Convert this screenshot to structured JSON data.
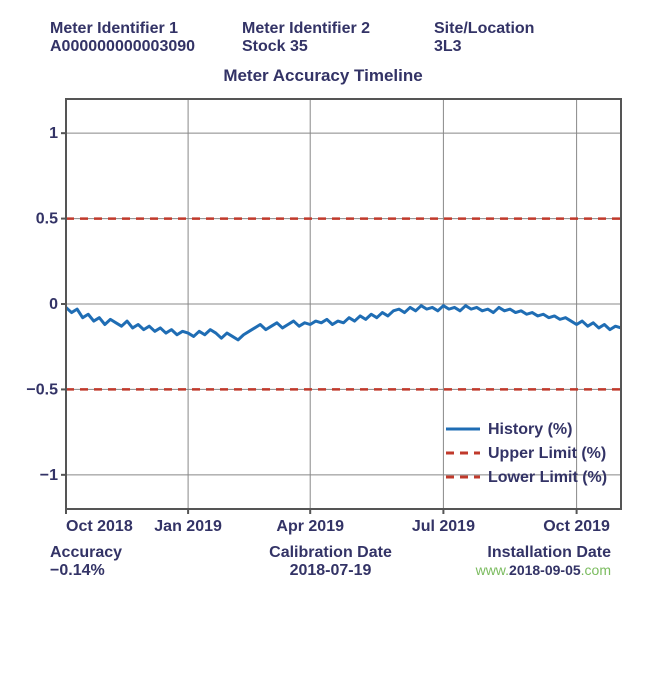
{
  "header": {
    "col1_label": "Meter Identifier 1",
    "col1_value": "A000000000003090",
    "col2_label": "Meter Identifier 2",
    "col2_value": "Stock 35",
    "col3_label": "Site/Location",
    "col3_value": "3L3"
  },
  "chart": {
    "title": "Meter Accuracy Timeline",
    "type": "line",
    "ylim": [
      -1.2,
      1.2
    ],
    "ytick_values": [
      -1,
      -0.5,
      0,
      0.5,
      1
    ],
    "ytick_labels": [
      "−1",
      "−0.5",
      "0",
      "0.5",
      "1"
    ],
    "xtick_positions": [
      0,
      0.22,
      0.44,
      0.68,
      0.92
    ],
    "xtick_labels": [
      "Oct 2018",
      "Jan 2019",
      "Apr 2019",
      "Jul 2019",
      "Oct 2019"
    ],
    "upper_limit": 0.5,
    "lower_limit": -0.5,
    "history_color": "#1f6db4",
    "limit_color": "#c0392b",
    "grid_color": "#888888",
    "border_color": "#555555",
    "background_color": "#ffffff",
    "axis_label_color": "#333366",
    "line_width": 3,
    "limit_line_width": 2.5,
    "limit_dash": "8,6",
    "axis_fontsize": 16,
    "history_data": [
      [
        0.0,
        -0.02
      ],
      [
        0.01,
        -0.05
      ],
      [
        0.02,
        -0.03
      ],
      [
        0.03,
        -0.08
      ],
      [
        0.04,
        -0.06
      ],
      [
        0.05,
        -0.1
      ],
      [
        0.06,
        -0.08
      ],
      [
        0.07,
        -0.12
      ],
      [
        0.08,
        -0.09
      ],
      [
        0.09,
        -0.11
      ],
      [
        0.1,
        -0.13
      ],
      [
        0.11,
        -0.1
      ],
      [
        0.12,
        -0.14
      ],
      [
        0.13,
        -0.12
      ],
      [
        0.14,
        -0.15
      ],
      [
        0.15,
        -0.13
      ],
      [
        0.16,
        -0.16
      ],
      [
        0.17,
        -0.14
      ],
      [
        0.18,
        -0.17
      ],
      [
        0.19,
        -0.15
      ],
      [
        0.2,
        -0.18
      ],
      [
        0.21,
        -0.16
      ],
      [
        0.22,
        -0.17
      ],
      [
        0.23,
        -0.19
      ],
      [
        0.24,
        -0.16
      ],
      [
        0.25,
        -0.18
      ],
      [
        0.26,
        -0.15
      ],
      [
        0.27,
        -0.17
      ],
      [
        0.28,
        -0.2
      ],
      [
        0.29,
        -0.17
      ],
      [
        0.3,
        -0.19
      ],
      [
        0.31,
        -0.21
      ],
      [
        0.32,
        -0.18
      ],
      [
        0.33,
        -0.16
      ],
      [
        0.34,
        -0.14
      ],
      [
        0.35,
        -0.12
      ],
      [
        0.36,
        -0.15
      ],
      [
        0.37,
        -0.13
      ],
      [
        0.38,
        -0.11
      ],
      [
        0.39,
        -0.14
      ],
      [
        0.4,
        -0.12
      ],
      [
        0.41,
        -0.1
      ],
      [
        0.42,
        -0.13
      ],
      [
        0.43,
        -0.11
      ],
      [
        0.44,
        -0.12
      ],
      [
        0.45,
        -0.1
      ],
      [
        0.46,
        -0.11
      ],
      [
        0.47,
        -0.09
      ],
      [
        0.48,
        -0.12
      ],
      [
        0.49,
        -0.1
      ],
      [
        0.5,
        -0.11
      ],
      [
        0.51,
        -0.08
      ],
      [
        0.52,
        -0.1
      ],
      [
        0.53,
        -0.07
      ],
      [
        0.54,
        -0.09
      ],
      [
        0.55,
        -0.06
      ],
      [
        0.56,
        -0.08
      ],
      [
        0.57,
        -0.05
      ],
      [
        0.58,
        -0.07
      ],
      [
        0.59,
        -0.04
      ],
      [
        0.6,
        -0.03
      ],
      [
        0.61,
        -0.05
      ],
      [
        0.62,
        -0.02
      ],
      [
        0.63,
        -0.04
      ],
      [
        0.64,
        -0.01
      ],
      [
        0.65,
        -0.03
      ],
      [
        0.66,
        -0.02
      ],
      [
        0.67,
        -0.04
      ],
      [
        0.68,
        -0.01
      ],
      [
        0.69,
        -0.03
      ],
      [
        0.7,
        -0.02
      ],
      [
        0.71,
        -0.04
      ],
      [
        0.72,
        -0.01
      ],
      [
        0.73,
        -0.03
      ],
      [
        0.74,
        -0.02
      ],
      [
        0.75,
        -0.04
      ],
      [
        0.76,
        -0.03
      ],
      [
        0.77,
        -0.05
      ],
      [
        0.78,
        -0.02
      ],
      [
        0.79,
        -0.04
      ],
      [
        0.8,
        -0.03
      ],
      [
        0.81,
        -0.05
      ],
      [
        0.82,
        -0.04
      ],
      [
        0.83,
        -0.06
      ],
      [
        0.84,
        -0.05
      ],
      [
        0.85,
        -0.07
      ],
      [
        0.86,
        -0.06
      ],
      [
        0.87,
        -0.08
      ],
      [
        0.88,
        -0.07
      ],
      [
        0.89,
        -0.09
      ],
      [
        0.9,
        -0.08
      ],
      [
        0.91,
        -0.1
      ],
      [
        0.92,
        -0.12
      ],
      [
        0.93,
        -0.1
      ],
      [
        0.94,
        -0.13
      ],
      [
        0.95,
        -0.11
      ],
      [
        0.96,
        -0.14
      ],
      [
        0.97,
        -0.12
      ],
      [
        0.98,
        -0.15
      ],
      [
        0.99,
        -0.13
      ],
      [
        1.0,
        -0.14
      ]
    ],
    "legend": {
      "items": [
        {
          "label": "History (%)",
          "color": "#1f6db4",
          "style": "solid"
        },
        {
          "label": "Upper Limit (%)",
          "color": "#c0392b",
          "style": "dashed"
        },
        {
          "label": "Lower Limit (%)",
          "color": "#c0392b",
          "style": "dashed"
        }
      ],
      "text_color": "#333366",
      "fontsize": 16
    }
  },
  "footer": {
    "accuracy_label": "Accuracy",
    "accuracy_value": "−0.14%",
    "calibration_label": "Calibration Date",
    "calibration_value": "2018-07-19",
    "installation_label": "Installation Date",
    "installation_value": "2018-09-05",
    "watermark_prefix": "www.",
    "watermark_suffix": ".com"
  }
}
